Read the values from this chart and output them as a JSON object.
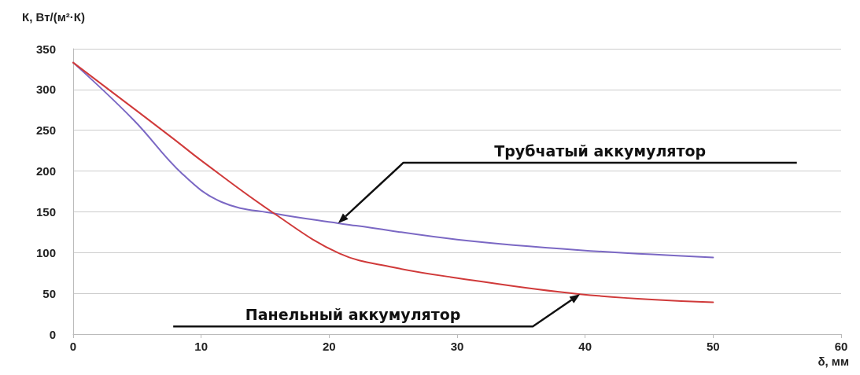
{
  "chart_data": {
    "type": "line",
    "ylabel": "К, Вт/(м²·К)",
    "xlabel": "δ, мм",
    "xlim": [
      0,
      60
    ],
    "xticks": [
      0,
      10,
      20,
      30,
      40,
      50,
      60
    ],
    "ylim": [
      0,
      350
    ],
    "yticks": [
      0,
      50,
      100,
      150,
      200,
      250,
      300,
      350
    ],
    "grid": "y",
    "marker": "none",
    "line_style": "solid",
    "series": [
      {
        "color": "#7b68c4",
        "x": [
          0,
          4.7,
          8.5,
          11.6,
          15.7,
          20.7,
          22.1,
          30,
          39.6,
          50
        ],
        "values": [
          333,
          263,
          197,
          162,
          148,
          136,
          133,
          116,
          103,
          94
        ]
      },
      {
        "color": "#d03a3a",
        "x": [
          0,
          7.8,
          10,
          15.7,
          20.8,
          25,
          29.5,
          39.6,
          50
        ],
        "values": [
          333,
          240,
          213,
          148,
          99,
          82,
          70,
          49,
          39
        ]
      }
    ],
    "annotations": [
      "Трубчатый аккумулятор",
      "Панельный аккумулятор"
    ]
  }
}
